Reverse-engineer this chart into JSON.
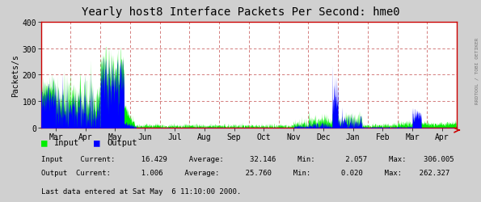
{
  "title": "Yearly host8 Interface Packets Per Second: hme0",
  "ylabel": "Packets/s",
  "ylim": [
    0,
    400
  ],
  "yticks": [
    0,
    100,
    200,
    300,
    400
  ],
  "background_color": "#d0d0d0",
  "plot_bg_color": "#ffffff",
  "grid_color": "#cc6666",
  "title_fontsize": 10,
  "axis_fontsize": 7,
  "month_labels": [
    "Mar",
    "Apr",
    "May",
    "Jun",
    "Jul",
    "Aug",
    "Sep",
    "Oct",
    "Nov",
    "Dec",
    "Jan",
    "Feb",
    "Mar",
    "Apr"
  ],
  "watermark": "RRDTOOL / TOBI OETIKER",
  "input_color": "#00ee00",
  "output_color": "#0000ff",
  "border_color": "#cc0000",
  "stats_fontsize": 6.5
}
